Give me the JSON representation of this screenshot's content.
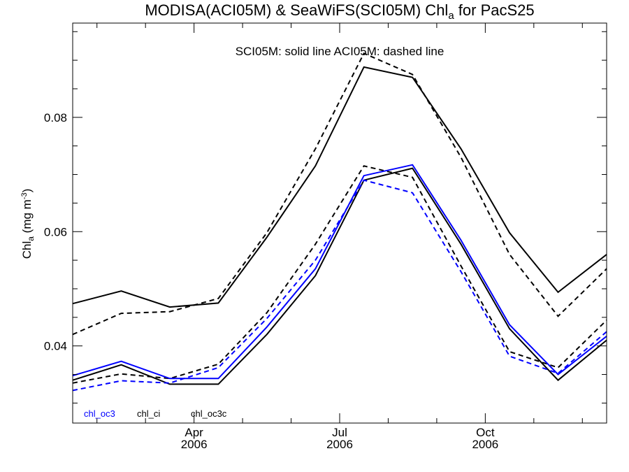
{
  "chart_data": {
    "type": "line",
    "title": {
      "prefix": "MODISA(ACI05M) & SeaWiFS(SCI05M)  Chl",
      "subscript": "a",
      "suffix": " for PacS25"
    },
    "ylabel": {
      "prefix": "Chl",
      "subscript": "a",
      "mid": " (mg m",
      "superscript": "-3",
      "suffix": ")"
    },
    "annotation": "SCI05M: solid line   ACI05M: dashed line",
    "ylim": [
      0.0265,
      0.0965
    ],
    "yticks": [
      0.04,
      0.06,
      0.08
    ],
    "ytick_labels": [
      "0.04",
      "0.06",
      "0.08"
    ],
    "xlim": [
      0,
      11
    ],
    "xticks": [
      {
        "x": 2.5,
        "month": "Apr",
        "year": "2006"
      },
      {
        "x": 5.5,
        "month": "Jul",
        "year": "2006"
      },
      {
        "x": 8.5,
        "month": "Oct",
        "year": "2006"
      }
    ],
    "x": [
      0,
      1,
      2,
      3,
      4,
      5,
      6,
      7,
      8,
      9,
      10,
      11
    ],
    "series": [
      {
        "name": "chl_ci",
        "sensor": "SCI05M",
        "color": "#000000",
        "dash": "solid",
        "values": [
          0.0474,
          0.0496,
          0.0468,
          0.0475,
          0.059,
          0.0715,
          0.0888,
          0.087,
          0.0745,
          0.0598,
          0.0494,
          0.056
        ]
      },
      {
        "name": "chl_ci",
        "sensor": "ACI05M",
        "color": "#000000",
        "dash": "dashed",
        "values": [
          0.042,
          0.0457,
          0.046,
          0.0483,
          0.0598,
          0.0745,
          0.0912,
          0.0875,
          0.073,
          0.056,
          0.0452,
          0.0535
        ]
      },
      {
        "name": "chl_oc3",
        "sensor": "SCI05M",
        "color": "#0000ff",
        "dash": "solid",
        "values": [
          0.0348,
          0.0373,
          0.0343,
          0.0343,
          0.0433,
          0.0535,
          0.0698,
          0.0717,
          0.0585,
          0.0437,
          0.035,
          0.0417
        ]
      },
      {
        "name": "chl_oc3",
        "sensor": "ACI05M",
        "color": "#0000ff",
        "dash": "dashed",
        "values": [
          0.0322,
          0.0339,
          0.0335,
          0.0362,
          0.0448,
          0.055,
          0.069,
          0.0668,
          0.053,
          0.0382,
          0.0352,
          0.0425
        ]
      },
      {
        "name": "chl_oc3c",
        "sensor": "SCI05M",
        "color": "#000000",
        "dash": "solid",
        "values": [
          0.034,
          0.0367,
          0.0333,
          0.0333,
          0.042,
          0.0523,
          0.069,
          0.0711,
          0.0578,
          0.043,
          0.034,
          0.041
        ]
      },
      {
        "name": "chl_oc3c",
        "sensor": "ACI05M",
        "color": "#000000",
        "dash": "dashed",
        "values": [
          0.0335,
          0.0351,
          0.0343,
          0.0368,
          0.0458,
          0.0578,
          0.0715,
          0.0695,
          0.054,
          0.039,
          0.0362,
          0.0445
        ]
      }
    ],
    "legend": [
      {
        "label": "chl_oc3",
        "color": "#0000ff"
      },
      {
        "label": "chl_ci",
        "color": "#000000"
      },
      {
        "label": "chl_oc3c",
        "color": "#000000"
      }
    ],
    "legend_position": "bottom-left",
    "grid": false
  }
}
